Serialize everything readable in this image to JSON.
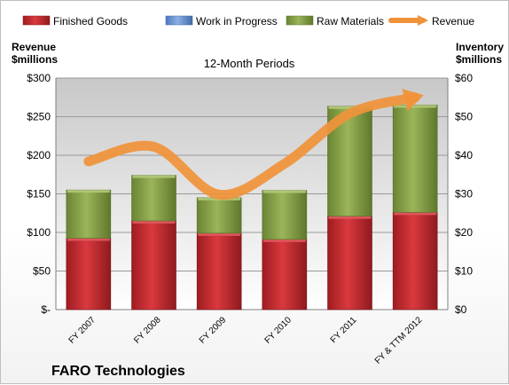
{
  "chart_data": {
    "type": "bar",
    "stacked": true,
    "subtitle": "12-Month Periods",
    "company": "FARO Technologies",
    "categories": [
      "FY 2007",
      "FY 2008",
      "FY 2009",
      "FY 2010",
      "FY 2011",
      "FY & TTM 2012"
    ],
    "series": [
      {
        "name": "Finished Goods",
        "color": "#c0282d",
        "axis": "right",
        "values": [
          18.5,
          23,
          19.8,
          18.2,
          24.2,
          25.2
        ]
      },
      {
        "name": "Work in Progress",
        "color": "#5b8bd0",
        "axis": "right",
        "values": [
          0,
          0,
          0,
          0,
          0,
          0
        ]
      },
      {
        "name": "Raw Materials",
        "color": "#7f9a3f",
        "axis": "right",
        "values": [
          12.5,
          11.8,
          9.2,
          12.7,
          28.5,
          27.8
        ]
      },
      {
        "name": "Revenue",
        "color": "#f0923a",
        "axis": "left",
        "type": "line",
        "values": [
          192,
          211,
          149,
          189,
          254,
          275
        ]
      }
    ],
    "left_axis": {
      "title_lines": [
        "Revenue",
        "$millions"
      ],
      "ylim": [
        0,
        300
      ],
      "ticks": [
        0,
        50,
        100,
        150,
        200,
        250,
        300
      ],
      "tick_labels": [
        "$-",
        "$50",
        "$100",
        "$150",
        "$200",
        "$250",
        "$300"
      ]
    },
    "right_axis": {
      "title_lines": [
        "Inventory",
        "$millions"
      ],
      "ylim": [
        0,
        60
      ],
      "ticks": [
        0,
        10,
        20,
        30,
        40,
        50,
        60
      ],
      "tick_labels": [
        "$0",
        "$10",
        "$20",
        "$30",
        "$40",
        "$50",
        "$60"
      ]
    },
    "grid": true,
    "legend_position": "top"
  }
}
